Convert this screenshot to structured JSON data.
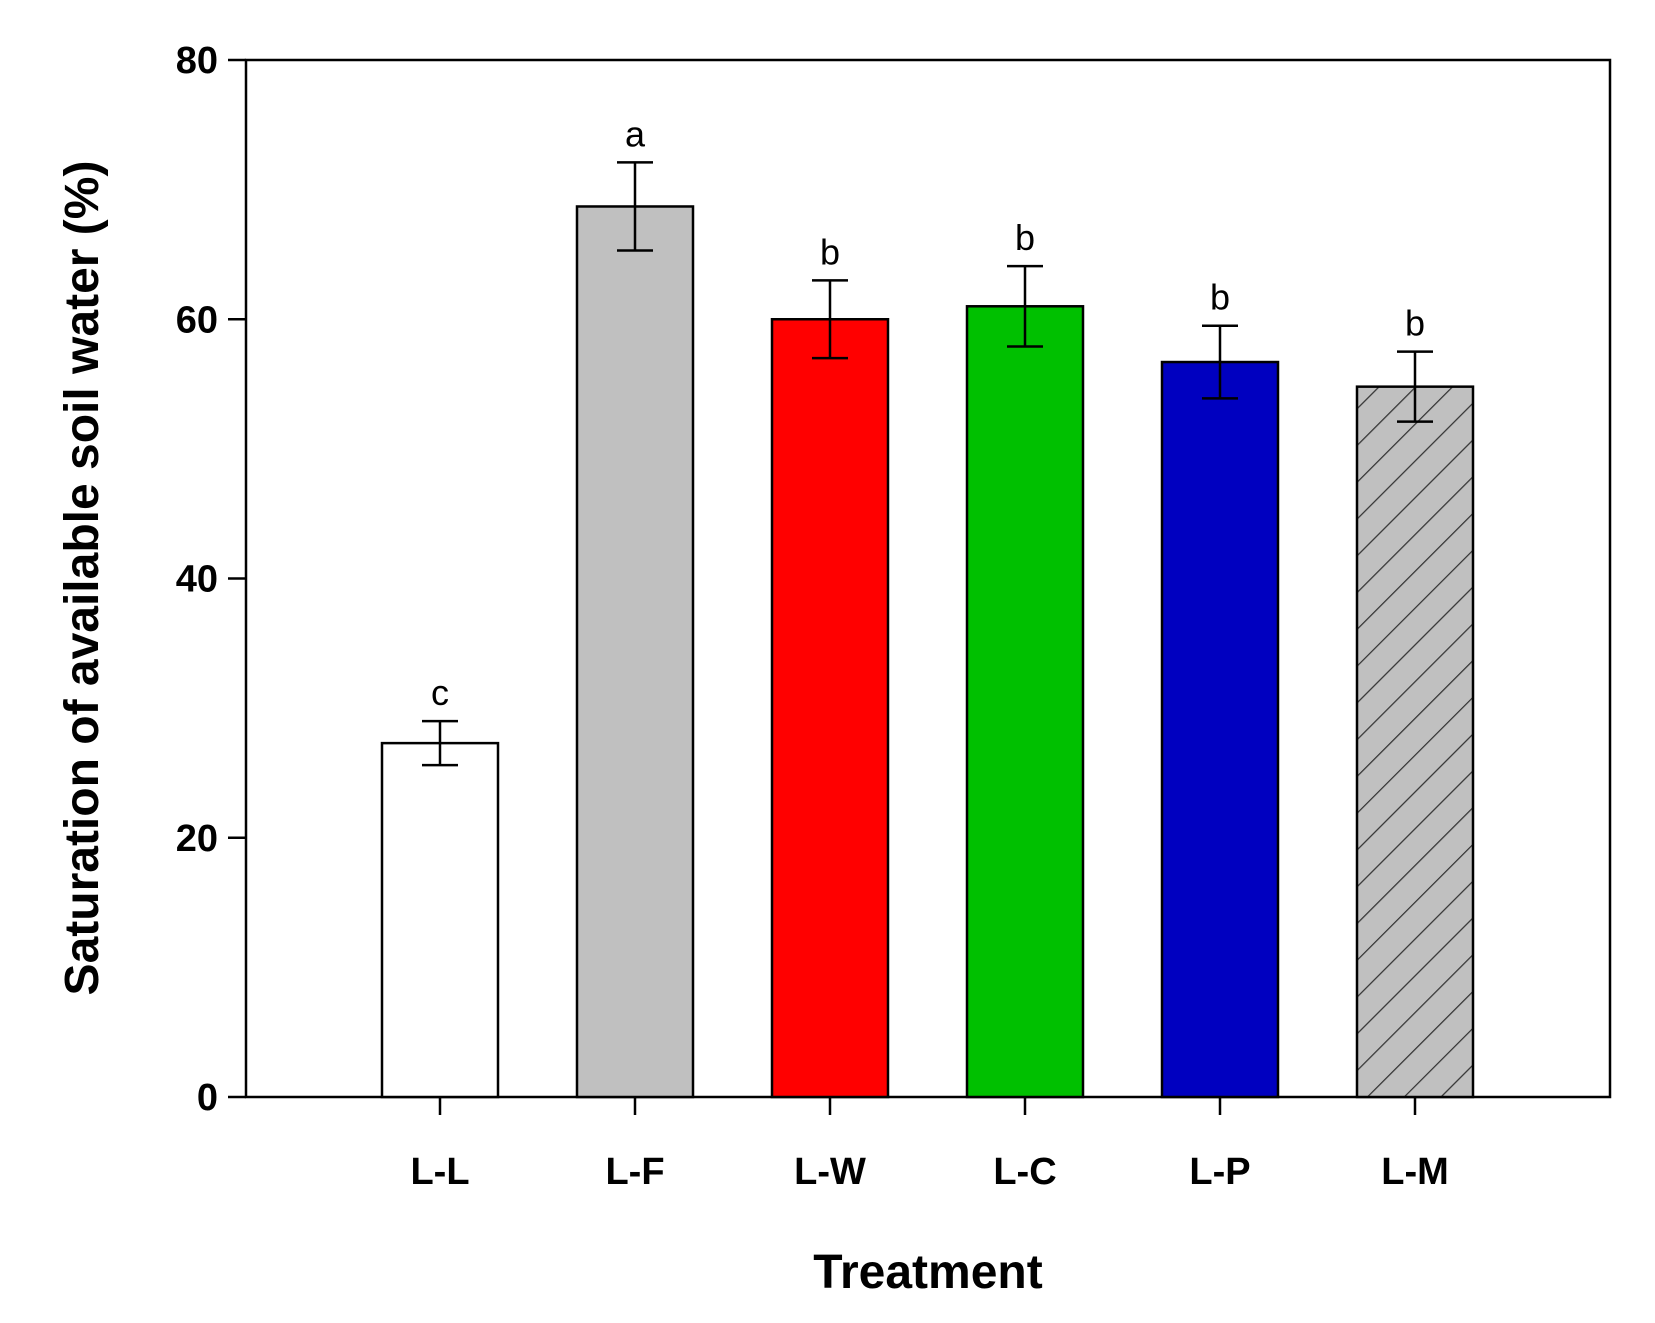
{
  "chart_data": {
    "type": "bar",
    "title": "",
    "xlabel": "Treatment",
    "ylabel": "Saturation of available soil water (%)",
    "ylim": [
      0,
      80
    ],
    "yticks": [
      0,
      20,
      40,
      60,
      80
    ],
    "grid": false,
    "categories": [
      "L-L",
      "L-F",
      "L-W",
      "L-C",
      "L-P",
      "L-M"
    ],
    "values": [
      27.3,
      68.7,
      60.0,
      61.0,
      56.7,
      54.8
    ],
    "errors": [
      1.7,
      3.4,
      3.0,
      3.1,
      2.8,
      2.7
    ],
    "letters": [
      "c",
      "a",
      "b",
      "b",
      "b",
      "b"
    ],
    "fills": [
      "#ffffff",
      "#c0c0c0",
      "#ff0000",
      "#00c000",
      "#0000c0",
      "#c0c0c0"
    ],
    "hatched": [
      false,
      false,
      false,
      false,
      false,
      true
    ]
  }
}
